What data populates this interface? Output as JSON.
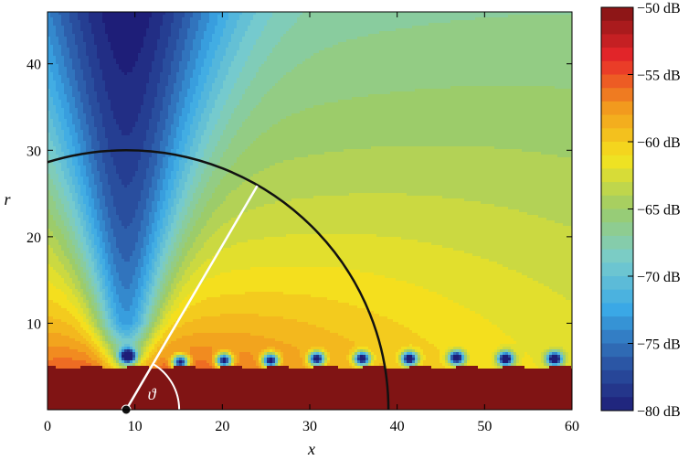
{
  "chart_data": {
    "type": "heatmap",
    "title": "",
    "xlabel": "x",
    "ylabel": "r",
    "xlim": [
      0,
      60
    ],
    "ylim": [
      0,
      46
    ],
    "x_ticks": [
      0,
      10,
      20,
      30,
      40,
      50,
      60
    ],
    "x_tick_labels": [
      "0",
      "10",
      "20",
      "30",
      "40",
      "50",
      "60"
    ],
    "y_ticks": [
      10,
      20,
      30,
      40
    ],
    "y_tick_labels": [
      "10",
      "20",
      "30",
      "40"
    ],
    "grid": false,
    "colorbar": {
      "range": [
        -80,
        -50
      ],
      "ticks": [
        -50,
        -55,
        -60,
        -65,
        -70,
        -75,
        -80
      ],
      "tick_labels": [
        "−50 dB",
        "−55 dB",
        "−60 dB",
        "−65 dB",
        "−70 dB",
        "−75 dB",
        "−80 dB"
      ],
      "colormap": "jet",
      "colors": [
        "#1e1e78",
        "#2c5aa8",
        "#3aa8e6",
        "#79cccc",
        "#9ccc6a",
        "#f4e41e",
        "#f29a1e",
        "#e8262a",
        "#801414"
      ]
    },
    "source": {
      "x": 9,
      "r": 0
    },
    "circle": {
      "center_x": 9,
      "center_r": 0,
      "radius": 30,
      "color": "#111111"
    },
    "radial_line": {
      "from_x": 9,
      "from_r": 0,
      "to_x": 24,
      "to_r": 25.9,
      "color": "#ffffff"
    },
    "angle_label": "ϑ",
    "surface": {
      "level_r": 4.9,
      "near_field_level_db": -50
    },
    "minima": [
      {
        "x": 9.2,
        "r": 6.2
      },
      {
        "x": 15.2,
        "r": 5.5
      },
      {
        "x": 20.2,
        "r": 5.7
      },
      {
        "x": 25.5,
        "r": 5.7
      },
      {
        "x": 30.8,
        "r": 5.9
      },
      {
        "x": 36.0,
        "r": 5.9
      },
      {
        "x": 41.4,
        "r": 5.9
      },
      {
        "x": 46.8,
        "r": 6.0
      },
      {
        "x": 52.4,
        "r": 5.9
      },
      {
        "x": 58.0,
        "r": 5.9
      }
    ]
  }
}
